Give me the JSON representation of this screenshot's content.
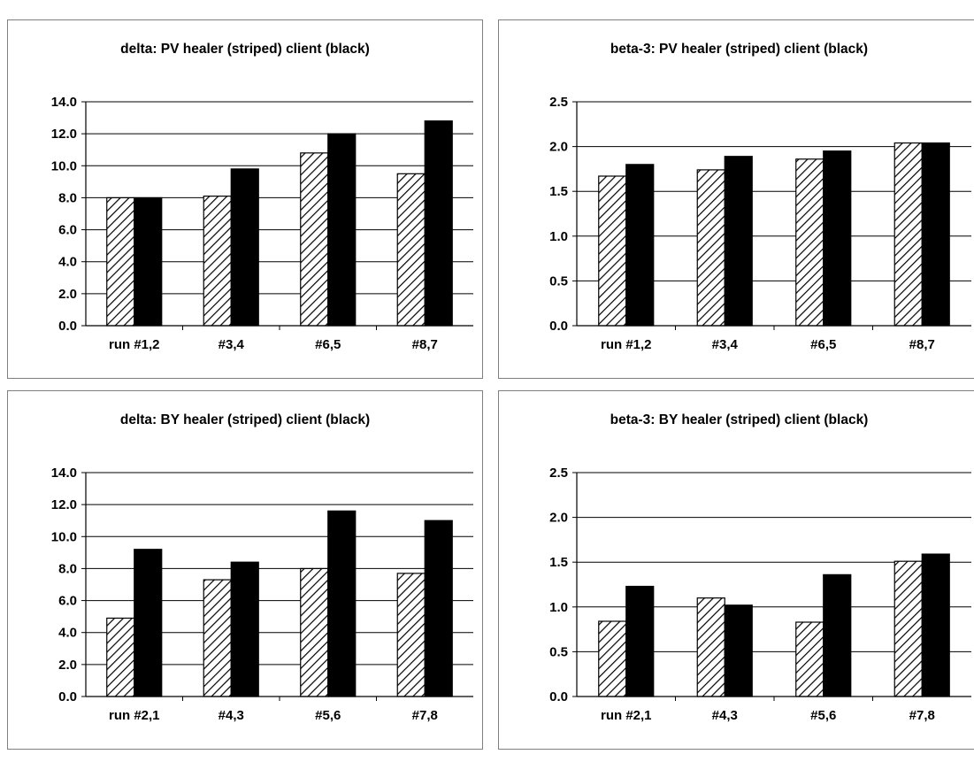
{
  "chart_data": [
    {
      "type": "bar",
      "title": "delta: PV healer (striped) client (black)",
      "categories": [
        "run #1,2",
        "#3,4",
        "#6,5",
        "#8,7"
      ],
      "series": [
        {
          "values": [
            8.0,
            8.1,
            10.8,
            9.5
          ],
          "pattern": "striped"
        },
        {
          "values": [
            8.0,
            9.8,
            12.0,
            12.8
          ],
          "color": "#000000"
        }
      ],
      "ylim": [
        0,
        14
      ],
      "yticks": [
        "0.0",
        "2.0",
        "4.0",
        "6.0",
        "8.0",
        "10.0",
        "12.0",
        "14.0"
      ],
      "grid": true
    },
    {
      "type": "bar",
      "title": "beta-3: PV healer (striped) client (black)",
      "categories": [
        "run #1,2",
        "#3,4",
        "#6,5",
        "#8,7"
      ],
      "series": [
        {
          "values": [
            1.67,
            1.74,
            1.86,
            2.04
          ],
          "pattern": "striped"
        },
        {
          "values": [
            1.8,
            1.89,
            1.95,
            2.04
          ],
          "color": "#000000"
        }
      ],
      "ylim": [
        0,
        2.5
      ],
      "yticks": [
        "0.0",
        "0.5",
        "1.0",
        "1.5",
        "2.0",
        "2.5"
      ],
      "grid": true
    },
    {
      "type": "bar",
      "title": "delta: BY healer (striped) client (black)",
      "categories": [
        "run #2,1",
        "#4,3",
        "#5,6",
        "#7,8"
      ],
      "series": [
        {
          "values": [
            4.9,
            7.3,
            8.0,
            7.7
          ],
          "pattern": "striped"
        },
        {
          "values": [
            9.2,
            8.4,
            11.6,
            11.0
          ],
          "color": "#000000"
        }
      ],
      "ylim": [
        0,
        14
      ],
      "yticks": [
        "0.0",
        "2.0",
        "4.0",
        "6.0",
        "8.0",
        "10.0",
        "12.0",
        "14.0"
      ],
      "grid": true
    },
    {
      "type": "bar",
      "title": "beta-3: BY healer (striped) client (black)",
      "categories": [
        "run #2,1",
        "#4,3",
        "#5,6",
        "#7,8"
      ],
      "series": [
        {
          "values": [
            0.84,
            1.1,
            0.83,
            1.51
          ],
          "pattern": "striped"
        },
        {
          "values": [
            1.23,
            1.02,
            1.36,
            1.59
          ],
          "color": "#000000"
        }
      ],
      "ylim": [
        0,
        2.5
      ],
      "yticks": [
        "0.0",
        "0.5",
        "1.0",
        "1.5",
        "2.0",
        "2.5"
      ],
      "grid": true
    }
  ]
}
